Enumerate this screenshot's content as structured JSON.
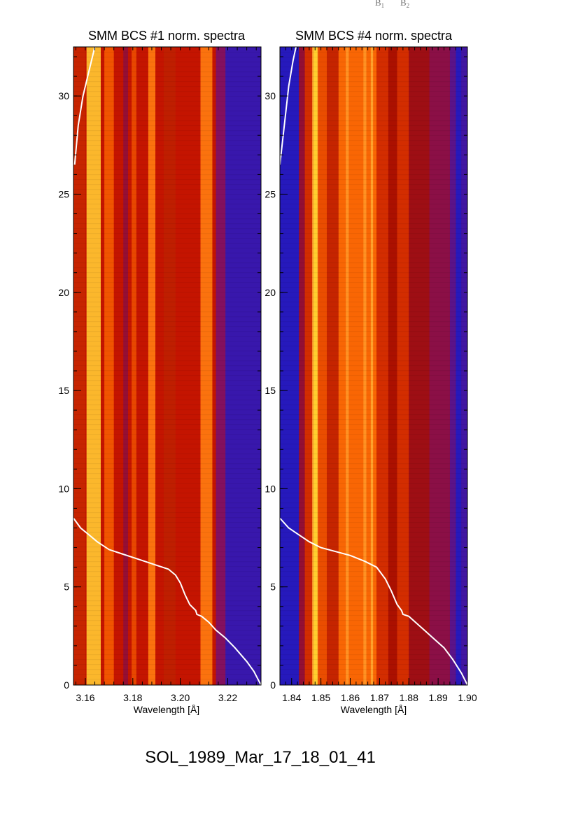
{
  "corner_labels": [
    {
      "base": "B",
      "sub": "1"
    },
    {
      "base": "B",
      "sub": "2"
    }
  ],
  "event_title": "SOL_1989_Mar_17_18_01_41",
  "chart_data": [
    {
      "type": "heatmap",
      "title": "SMM BCS #1 norm. spectra",
      "xlabel": "Wavelength [Å]",
      "ylabel": "",
      "xlim": [
        3.155,
        3.234
      ],
      "ylim": [
        0,
        32.5
      ],
      "xticks": [
        {
          "value": 3.16,
          "label": "3.16"
        },
        {
          "value": 3.18,
          "label": "3.18"
        },
        {
          "value": 3.2,
          "label": "3.20"
        },
        {
          "value": 3.22,
          "label": "3.22"
        }
      ],
      "yticks": [
        {
          "value": 0,
          "label": "0"
        },
        {
          "value": 5,
          "label": "5"
        },
        {
          "value": 10,
          "label": "10"
        },
        {
          "value": 15,
          "label": "15"
        },
        {
          "value": 20,
          "label": "20"
        },
        {
          "value": 25,
          "label": "25"
        },
        {
          "value": 30,
          "label": "30"
        }
      ],
      "background_color": "#c41400",
      "colormap": [
        "#1a1acc",
        "#7a1070",
        "#a50d00",
        "#d63000",
        "#ff6a00",
        "#ffa030",
        "#ffe030"
      ],
      "bands": [
        {
          "wl_start": 3.155,
          "wl_end": 3.16,
          "intensity": 0.45
        },
        {
          "wl_start": 3.1605,
          "wl_end": 3.1665,
          "intensity": 0.93
        },
        {
          "wl_start": 3.168,
          "wl_end": 3.172,
          "intensity": 0.62
        },
        {
          "wl_start": 3.176,
          "wl_end": 3.178,
          "intensity": 0.25
        },
        {
          "wl_start": 3.1795,
          "wl_end": 3.1815,
          "intensity": 0.58
        },
        {
          "wl_start": 3.1865,
          "wl_end": 3.1895,
          "intensity": 0.72
        },
        {
          "wl_start": 3.193,
          "wl_end": 3.198,
          "intensity": 0.42
        },
        {
          "wl_start": 3.2085,
          "wl_end": 3.2135,
          "intensity": 0.72
        },
        {
          "wl_start": 3.215,
          "wl_end": 3.219,
          "intensity": 0.18
        },
        {
          "wl_start": 3.219,
          "wl_end": 3.234,
          "intensity": 0.03
        }
      ],
      "overlay_line": {
        "color": "#ffffff",
        "points": [
          {
            "x": 3.1555,
            "y": 26.5
          },
          {
            "x": 3.157,
            "y": 28.5
          },
          {
            "x": 3.159,
            "y": 30.0
          },
          {
            "x": 3.162,
            "y": 31.5
          },
          {
            "x": 3.164,
            "y": 32.5
          }
        ],
        "points2": [
          {
            "x": 3.155,
            "y": 8.5
          },
          {
            "x": 3.158,
            "y": 8.0
          },
          {
            "x": 3.161,
            "y": 7.7
          },
          {
            "x": 3.165,
            "y": 7.3
          },
          {
            "x": 3.17,
            "y": 6.9
          },
          {
            "x": 3.175,
            "y": 6.7
          },
          {
            "x": 3.18,
            "y": 6.5
          },
          {
            "x": 3.185,
            "y": 6.3
          },
          {
            "x": 3.19,
            "y": 6.1
          },
          {
            "x": 3.195,
            "y": 5.9
          },
          {
            "x": 3.198,
            "y": 5.6
          },
          {
            "x": 3.2,
            "y": 5.2
          },
          {
            "x": 3.202,
            "y": 4.6
          },
          {
            "x": 3.204,
            "y": 4.1
          },
          {
            "x": 3.2065,
            "y": 3.8
          },
          {
            "x": 3.207,
            "y": 3.6
          },
          {
            "x": 3.209,
            "y": 3.5
          },
          {
            "x": 3.212,
            "y": 3.2
          },
          {
            "x": 3.215,
            "y": 2.8
          },
          {
            "x": 3.219,
            "y": 2.4
          },
          {
            "x": 3.223,
            "y": 1.9
          },
          {
            "x": 3.228,
            "y": 1.2
          },
          {
            "x": 3.231,
            "y": 0.7
          },
          {
            "x": 3.234,
            "y": 0.0
          }
        ]
      }
    },
    {
      "type": "heatmap",
      "title": "SMM BCS #4 norm. spectra",
      "xlabel": "Wavelength [Å]",
      "ylabel": "",
      "xlim": [
        1.836,
        1.9
      ],
      "ylim": [
        0,
        32.5
      ],
      "xticks": [
        {
          "value": 1.84,
          "label": "1.84"
        },
        {
          "value": 1.85,
          "label": "1.85"
        },
        {
          "value": 1.86,
          "label": "1.86"
        },
        {
          "value": 1.87,
          "label": "1.87"
        },
        {
          "value": 1.88,
          "label": "1.88"
        },
        {
          "value": 1.89,
          "label": "1.89"
        },
        {
          "value": 1.9,
          "label": "1.90"
        }
      ],
      "yticks": [
        {
          "value": 0,
          "label": "0"
        },
        {
          "value": 5,
          "label": "5"
        },
        {
          "value": 10,
          "label": "10"
        },
        {
          "value": 15,
          "label": "15"
        },
        {
          "value": 20,
          "label": "20"
        },
        {
          "value": 25,
          "label": "25"
        },
        {
          "value": 30,
          "label": "30"
        }
      ],
      "background_color": "#b01000",
      "colormap": [
        "#1a1acc",
        "#7a1070",
        "#a50d00",
        "#d63000",
        "#ff6a00",
        "#ffa030",
        "#ffe030"
      ],
      "bands": [
        {
          "wl_start": 1.836,
          "wl_end": 1.8425,
          "intensity": 0.0
        },
        {
          "wl_start": 1.8425,
          "wl_end": 1.8445,
          "intensity": 0.25
        },
        {
          "wl_start": 1.8445,
          "wl_end": 1.847,
          "intensity": 0.5
        },
        {
          "wl_start": 1.847,
          "wl_end": 1.849,
          "intensity": 0.85
        },
        {
          "wl_start": 1.8475,
          "wl_end": 1.8488,
          "intensity": 0.97
        },
        {
          "wl_start": 1.849,
          "wl_end": 1.852,
          "intensity": 0.6
        },
        {
          "wl_start": 1.852,
          "wl_end": 1.856,
          "intensity": 0.45
        },
        {
          "wl_start": 1.856,
          "wl_end": 1.869,
          "intensity": 0.68
        },
        {
          "wl_start": 1.8585,
          "wl_end": 1.8595,
          "intensity": 0.8
        },
        {
          "wl_start": 1.8645,
          "wl_end": 1.8655,
          "intensity": 0.8
        },
        {
          "wl_start": 1.867,
          "wl_end": 1.8678,
          "intensity": 0.85
        },
        {
          "wl_start": 1.869,
          "wl_end": 1.873,
          "intensity": 0.5
        },
        {
          "wl_start": 1.873,
          "wl_end": 1.876,
          "intensity": 0.35
        },
        {
          "wl_start": 1.876,
          "wl_end": 1.88,
          "intensity": 0.5
        },
        {
          "wl_start": 1.88,
          "wl_end": 1.887,
          "intensity": 0.3
        },
        {
          "wl_start": 1.887,
          "wl_end": 1.894,
          "intensity": 0.22
        },
        {
          "wl_start": 1.894,
          "wl_end": 1.896,
          "intensity": 0.1
        },
        {
          "wl_start": 1.896,
          "wl_end": 1.898,
          "intensity": 0.0
        },
        {
          "wl_start": 1.898,
          "wl_end": 1.9,
          "intensity": 0.05
        }
      ],
      "overlay_line": {
        "color": "#ffffff",
        "points": [
          {
            "x": 1.836,
            "y": 26.5
          },
          {
            "x": 1.8375,
            "y": 28.5
          },
          {
            "x": 1.839,
            "y": 30.5
          },
          {
            "x": 1.8405,
            "y": 31.8
          },
          {
            "x": 1.8415,
            "y": 32.5
          }
        ],
        "points2": [
          {
            "x": 1.836,
            "y": 8.5
          },
          {
            "x": 1.839,
            "y": 8.0
          },
          {
            "x": 1.842,
            "y": 7.7
          },
          {
            "x": 1.846,
            "y": 7.3
          },
          {
            "x": 1.85,
            "y": 7.0
          },
          {
            "x": 1.855,
            "y": 6.8
          },
          {
            "x": 1.86,
            "y": 6.6
          },
          {
            "x": 1.865,
            "y": 6.3
          },
          {
            "x": 1.869,
            "y": 6.0
          },
          {
            "x": 1.872,
            "y": 5.4
          },
          {
            "x": 1.874,
            "y": 4.8
          },
          {
            "x": 1.876,
            "y": 4.1
          },
          {
            "x": 1.8775,
            "y": 3.8
          },
          {
            "x": 1.878,
            "y": 3.6
          },
          {
            "x": 1.88,
            "y": 3.5
          },
          {
            "x": 1.883,
            "y": 3.1
          },
          {
            "x": 1.886,
            "y": 2.7
          },
          {
            "x": 1.889,
            "y": 2.3
          },
          {
            "x": 1.892,
            "y": 1.9
          },
          {
            "x": 1.895,
            "y": 1.3
          },
          {
            "x": 1.898,
            "y": 0.6
          },
          {
            "x": 1.9,
            "y": 0.0
          }
        ]
      }
    }
  ]
}
